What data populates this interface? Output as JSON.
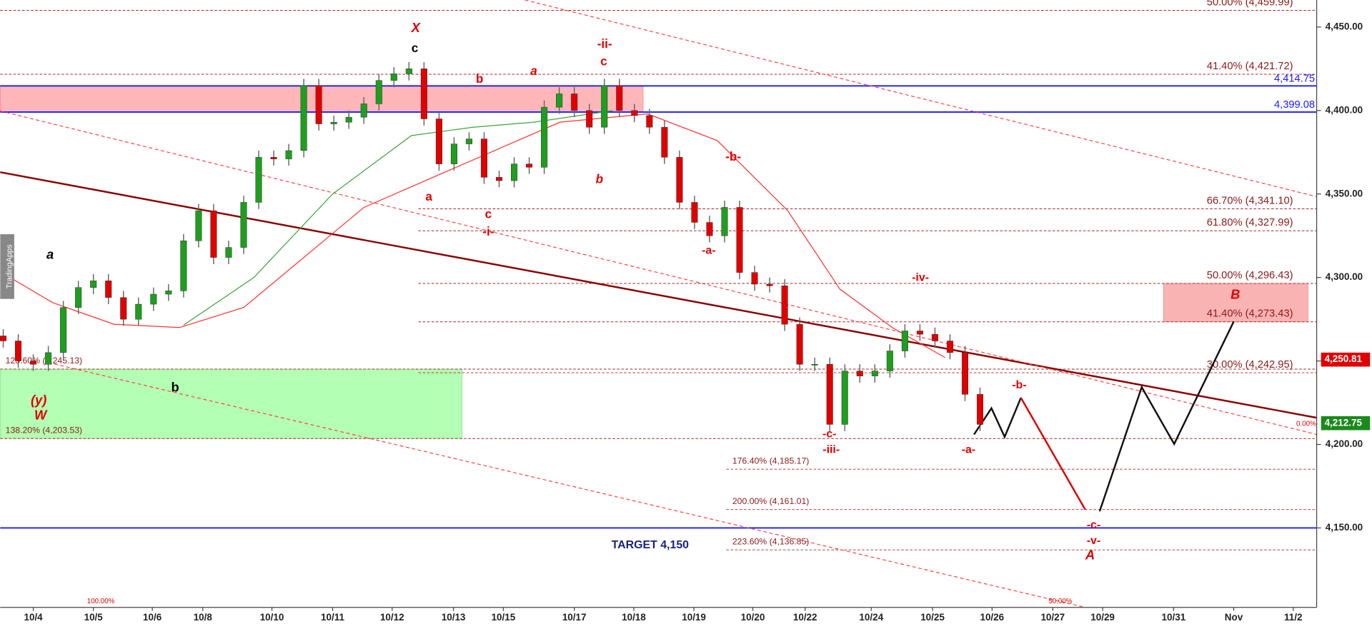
{
  "chart_data": {
    "type": "candlestick",
    "watermark": "TradingApps",
    "xlim": [
      -0.55,
      21.35
    ],
    "ylim": [
      4102.4,
      4466.2
    ],
    "xticks": [
      {
        "value": 0,
        "label": "10/4"
      },
      {
        "value": 1.0,
        "label": "10/5"
      },
      {
        "value": 1.98,
        "label": "10/6"
      },
      {
        "value": 2.82,
        "label": "10/8"
      },
      {
        "value": 3.97,
        "label": "10/10"
      },
      {
        "value": 4.98,
        "label": "10/11"
      },
      {
        "value": 5.97,
        "label": "10/12"
      },
      {
        "value": 6.99,
        "label": "10/13"
      },
      {
        "value": 7.82,
        "label": "10/15"
      },
      {
        "value": 9.0,
        "label": "10/17"
      },
      {
        "value": 9.99,
        "label": "10/18"
      },
      {
        "value": 10.99,
        "label": "10/19"
      },
      {
        "value": 11.97,
        "label": "10/20"
      },
      {
        "value": 12.84,
        "label": "10/22"
      },
      {
        "value": 13.94,
        "label": "10/24"
      },
      {
        "value": 14.96,
        "label": "10/25"
      },
      {
        "value": 15.95,
        "label": "10/26"
      },
      {
        "value": 16.96,
        "label": "10/27"
      },
      {
        "value": 17.79,
        "label": "10/29"
      },
      {
        "value": 18.97,
        "label": "10/31"
      },
      {
        "value": 19.97,
        "label": "Nov"
      },
      {
        "value": 20.96,
        "label": "11/2"
      }
    ],
    "yticks": [
      {
        "value": 4150,
        "label": "4,150.00"
      },
      {
        "value": 4200,
        "label": "4,200.00"
      },
      {
        "value": 4250,
        "label": "4,250.00"
      },
      {
        "value": 4300,
        "label": "4,300.00"
      },
      {
        "value": 4350,
        "label": "4,350.00"
      },
      {
        "value": 4400,
        "label": "4,400.00"
      },
      {
        "value": 4450,
        "label": "4,450.00"
      }
    ],
    "up_color": "#1e9e1e",
    "down_color": "#e00000",
    "candles": {
      "x": [
        -0.5,
        -0.25,
        0,
        0.25,
        0.5,
        0.75,
        1,
        1.25,
        1.5,
        1.75,
        2,
        2.25,
        2.5,
        2.75,
        3,
        3.25,
        3.5,
        3.75,
        4,
        4.25,
        4.5,
        4.75,
        5,
        5.25,
        5.5,
        5.75,
        6,
        6.25,
        6.5,
        6.75,
        7,
        7.25,
        7.5,
        7.75,
        8,
        8.25,
        8.5,
        8.75,
        9,
        9.25,
        9.5,
        9.75,
        10,
        10.25,
        10.5,
        10.75,
        11,
        11.25,
        11.5,
        11.75,
        12,
        12.25,
        12.5,
        12.75,
        13,
        13.25,
        13.5,
        13.75,
        14,
        14.25,
        14.5,
        14.75,
        15,
        15.25,
        15.5,
        15.75
      ],
      "open": [
        4265,
        4262,
        4250,
        4248,
        4255,
        4282,
        4294,
        4298,
        4288,
        4275,
        4284,
        4290,
        4292,
        4322,
        4340,
        4312,
        4318,
        4345,
        4372,
        4371,
        4376,
        4415,
        4392,
        4393,
        4396,
        4404,
        4418,
        4422,
        4425,
        4395,
        4368,
        4380,
        4383,
        4360,
        4358,
        4368,
        4366,
        4402,
        4410,
        4400,
        4390,
        4415,
        4400,
        4397,
        4390,
        4372,
        4345,
        4333,
        4325,
        4342,
        4303,
        4296,
        4295,
        4272,
        4248,
        4248,
        4212,
        4244,
        4241,
        4244,
        4256,
        4268,
        4266,
        4262,
        4255,
        4230
      ],
      "high": [
        4269,
        4266,
        4254,
        4259,
        4286,
        4298,
        4302,
        4302,
        4292,
        4288,
        4294,
        4296,
        4326,
        4344,
        4344,
        4322,
        4349,
        4376,
        4376,
        4380,
        4419,
        4419,
        4397,
        4400,
        4408,
        4422,
        4426,
        4429,
        4429,
        4399,
        4384,
        4387,
        4387,
        4364,
        4372,
        4372,
        4406,
        4414,
        4414,
        4404,
        4419,
        4419,
        4404,
        4401,
        4394,
        4376,
        4349,
        4337,
        4346,
        4346,
        4307,
        4300,
        4299,
        4276,
        4252,
        4252,
        4248,
        4248,
        4248,
        4260,
        4272,
        4272,
        4270,
        4266,
        4259,
        4234
      ],
      "low": [
        4258,
        4246,
        4244,
        4244,
        4251,
        4278,
        4290,
        4284,
        4271,
        4271,
        4280,
        4286,
        4288,
        4318,
        4308,
        4308,
        4314,
        4341,
        4367,
        4367,
        4372,
        4388,
        4388,
        4389,
        4392,
        4400,
        4414,
        4418,
        4391,
        4364,
        4364,
        4376,
        4356,
        4354,
        4354,
        4362,
        4362,
        4398,
        4396,
        4386,
        4386,
        4396,
        4393,
        4386,
        4368,
        4341,
        4329,
        4321,
        4321,
        4299,
        4292,
        4291,
        4268,
        4244,
        4244,
        4208,
        4208,
        4237,
        4237,
        4240,
        4252,
        4262,
        4258,
        4251,
        4226,
        4208
      ],
      "close": [
        4262,
        4250,
        4248,
        4255,
        4282,
        4294,
        4298,
        4288,
        4275,
        4284,
        4290,
        4292,
        4322,
        4340,
        4312,
        4318,
        4345,
        4372,
        4371,
        4376,
        4415,
        4392,
        4393,
        4396,
        4404,
        4418,
        4422,
        4425,
        4395,
        4368,
        4380,
        4383,
        4360,
        4358,
        4368,
        4366,
        4402,
        4410,
        4400,
        4390,
        4415,
        4400,
        4397,
        4390,
        4372,
        4345,
        4333,
        4325,
        4342,
        4303,
        4296,
        4295,
        4272,
        4248,
        4248,
        4212,
        4244,
        4241,
        4244,
        4256,
        4268,
        4266,
        4262,
        4255,
        4230,
        4212
      ]
    },
    "zones": [
      {
        "range": [
          4399.08,
          4414.75
        ],
        "color": "#ffb6b9"
      },
      {
        "range": [
          4203.53,
          4245.13
        ],
        "color": "#b3ffb3"
      },
      {
        "range": [
          4273.43,
          4296.43
        ],
        "color": "#f9b3b3"
      }
    ],
    "levels": [
      {
        "label": "50.00% (4,459.99)",
        "value": 4459.99
      },
      {
        "label": "41.40% (4,421.72)",
        "value": 4421.72
      },
      {
        "label": "66.70% (4,341.10)",
        "value": 4341.1
      },
      {
        "label": "61.80% (4,327.99)",
        "value": 4327.99
      },
      {
        "label": "50.00% (4,296.43)",
        "value": 4296.43
      },
      {
        "label": "41.40% (4,273.43)",
        "value": 4273.43
      },
      {
        "label": "30.00% (4,242.95)",
        "value": 4242.95
      },
      {
        "label": "176.40% (4,185.17)",
        "value": 4185.17
      },
      {
        "label": "200.00% (4,161.01)",
        "value": 4161.01
      },
      {
        "label": "223.60% (4,136.85)",
        "value": 4136.85
      },
      {
        "label": "123.60% (4,245.13)",
        "value": 4245.13
      },
      {
        "label": "138.20% (4,203.53)",
        "value": 4203.53
      }
    ],
    "hlines": [
      {
        "value": 4414.75,
        "label": "4,414.75",
        "color": "#1a1aff"
      },
      {
        "value": 4399.08,
        "label": "4,399.08",
        "color": "#1a1aff"
      },
      {
        "value": 4150,
        "color": "#1a1aff"
      }
    ],
    "price_tags": [
      {
        "value": 4250.81,
        "label": "4,250.81",
        "color": "#e00000"
      },
      {
        "value": 4212.75,
        "label": "4,212.75",
        "color": "#1a8a1a"
      }
    ],
    "lines": [
      {
        "color": "#8b0000",
        "width": 2,
        "dash": false,
        "x": [
          -0.55,
          21.35
        ],
        "values": [
          4363.1,
          4216.0
        ]
      },
      {
        "color": "#ff4444",
        "width": 1,
        "dash": true,
        "x": [
          8.18,
          21.35
        ],
        "values": [
          4466.2,
          4348.4
        ]
      },
      {
        "color": "#ff4444",
        "width": 1,
        "dash": true,
        "x": [
          -0.55,
          21.35
        ],
        "values": [
          4399.7,
          4206.0
        ]
      },
      {
        "color": "#ff4444",
        "width": 1,
        "dash": true,
        "x": [
          0.25,
          17.5
        ],
        "values": [
          4249.0,
          4102.4
        ]
      },
      {
        "color": "#3aa63a",
        "width": 1,
        "dash": false,
        "x": [
          2.5,
          3.67,
          4.98,
          6.29,
          7.31,
          8.33,
          9.64
        ],
        "values": [
          4271.5,
          4300,
          4350,
          4385,
          4390,
          4393,
          4400
        ]
      },
      {
        "color": "#ff3030",
        "width": 1,
        "dash": false,
        "x": [
          -0.48,
          0.32,
          1.34,
          2.43,
          3.5,
          5.5,
          8.76,
          10.22,
          11.38,
          12.55,
          13.42,
          14.29,
          15.17
        ],
        "values": [
          4302,
          4285,
          4272,
          4270,
          4282,
          4342,
          4393,
          4398,
          4382,
          4340,
          4293,
          4270,
          4252
        ]
      },
      {
        "color": "#111111",
        "width": 2,
        "dash": false,
        "x": [
          15.65,
          15.94,
          16.16,
          16.43
        ],
        "values": [
          4206.0,
          4221.7,
          4204.5,
          4228.0
        ]
      },
      {
        "color": "#e00000",
        "width": 2,
        "dash": false,
        "x": [
          16.43,
          17.5
        ],
        "values": [
          4228.0,
          4161.0
        ]
      },
      {
        "color": "#111111",
        "width": 2,
        "dash": false,
        "x": [
          17.74,
          18.44,
          18.98,
          19.97
        ],
        "values": [
          4160.0,
          4234.3,
          4200.3,
          4273.6
        ]
      }
    ],
    "annotations": [
      {
        "text": "X",
        "color": "#e00000"
      },
      {
        "text": "c",
        "color": "#000000"
      },
      {
        "text": "-ii-",
        "color": "#e00000"
      },
      {
        "text": "c",
        "color": "#e00000"
      },
      {
        "text": "a",
        "color": "#e00000"
      },
      {
        "text": "b",
        "color": "#e00000"
      },
      {
        "text": "b",
        "color": "#e00000"
      },
      {
        "text": "a",
        "color": "#e00000"
      },
      {
        "text": "c",
        "color": "#e00000"
      },
      {
        "text": "-i-",
        "color": "#e00000"
      },
      {
        "text": "-b-",
        "color": "#e00000"
      },
      {
        "text": "-a-",
        "color": "#e00000"
      },
      {
        "text": "-iv-",
        "color": "#e00000"
      },
      {
        "text": "B",
        "color": "#e00000"
      },
      {
        "text": "-b-",
        "color": "#e00000"
      },
      {
        "text": "-c-",
        "color": "#e00000"
      },
      {
        "text": "-iii-",
        "color": "#e00000"
      },
      {
        "text": "-a-",
        "color": "#e00000"
      },
      {
        "text": "-c-",
        "color": "#e00000"
      },
      {
        "text": "-v-",
        "color": "#e00000"
      },
      {
        "text": "A",
        "color": "#e00000"
      },
      {
        "text": "a",
        "color": "#000000"
      },
      {
        "text": "b",
        "color": "#000000"
      },
      {
        "text": "(y)",
        "color": "#e00000"
      },
      {
        "text": "W",
        "color": "#e00000"
      },
      {
        "text": "TARGET 4,150",
        "color": "#1a237e"
      },
      {
        "text": "100.00%",
        "color": "#e00000"
      },
      {
        "text": "50.00%",
        "color": "#e00000"
      },
      {
        "text": "0.00%",
        "color": "#e00000"
      }
    ]
  }
}
